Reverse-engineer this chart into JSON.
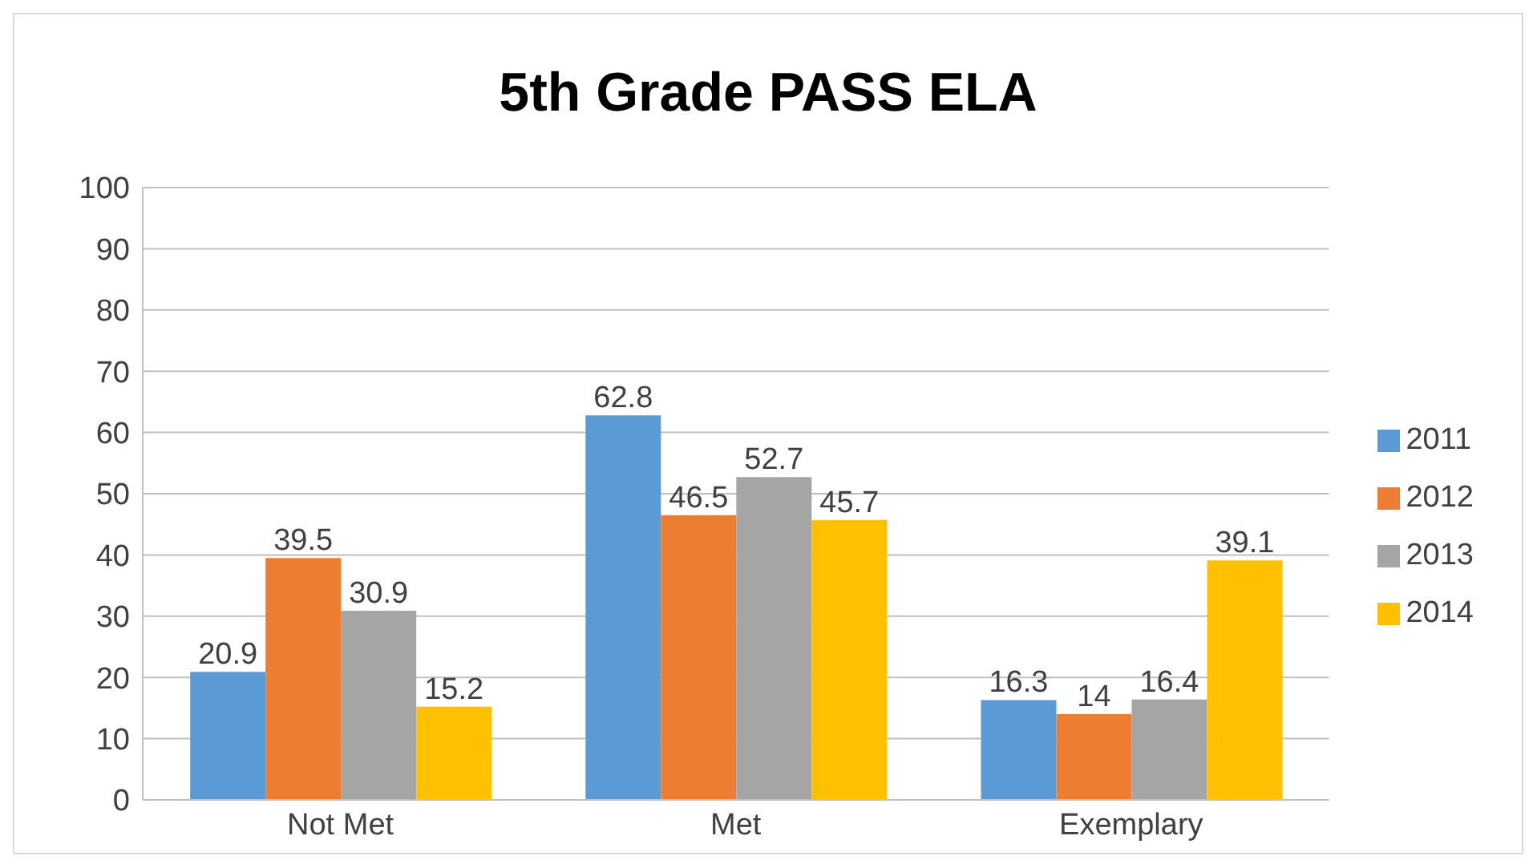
{
  "chart_data": {
    "type": "bar",
    "title": "5th Grade PASS ELA",
    "categories": [
      "Not Met",
      "Met",
      "Exemplary"
    ],
    "series": [
      {
        "name": "2011",
        "color": "#5b9bd5",
        "values": [
          20.9,
          62.8,
          16.3
        ]
      },
      {
        "name": "2012",
        "color": "#ed7d31",
        "values": [
          39.5,
          46.5,
          14
        ]
      },
      {
        "name": "2013",
        "color": "#a5a5a5",
        "values": [
          30.9,
          52.7,
          16.4
        ]
      },
      {
        "name": "2014",
        "color": "#ffc000",
        "values": [
          15.2,
          45.7,
          39.1
        ]
      }
    ],
    "ylim": [
      0,
      100
    ],
    "yticks": [
      0,
      10,
      20,
      30,
      40,
      50,
      60,
      70,
      80,
      90,
      100
    ],
    "grid": "y",
    "legend": "right",
    "data_labels": true
  }
}
